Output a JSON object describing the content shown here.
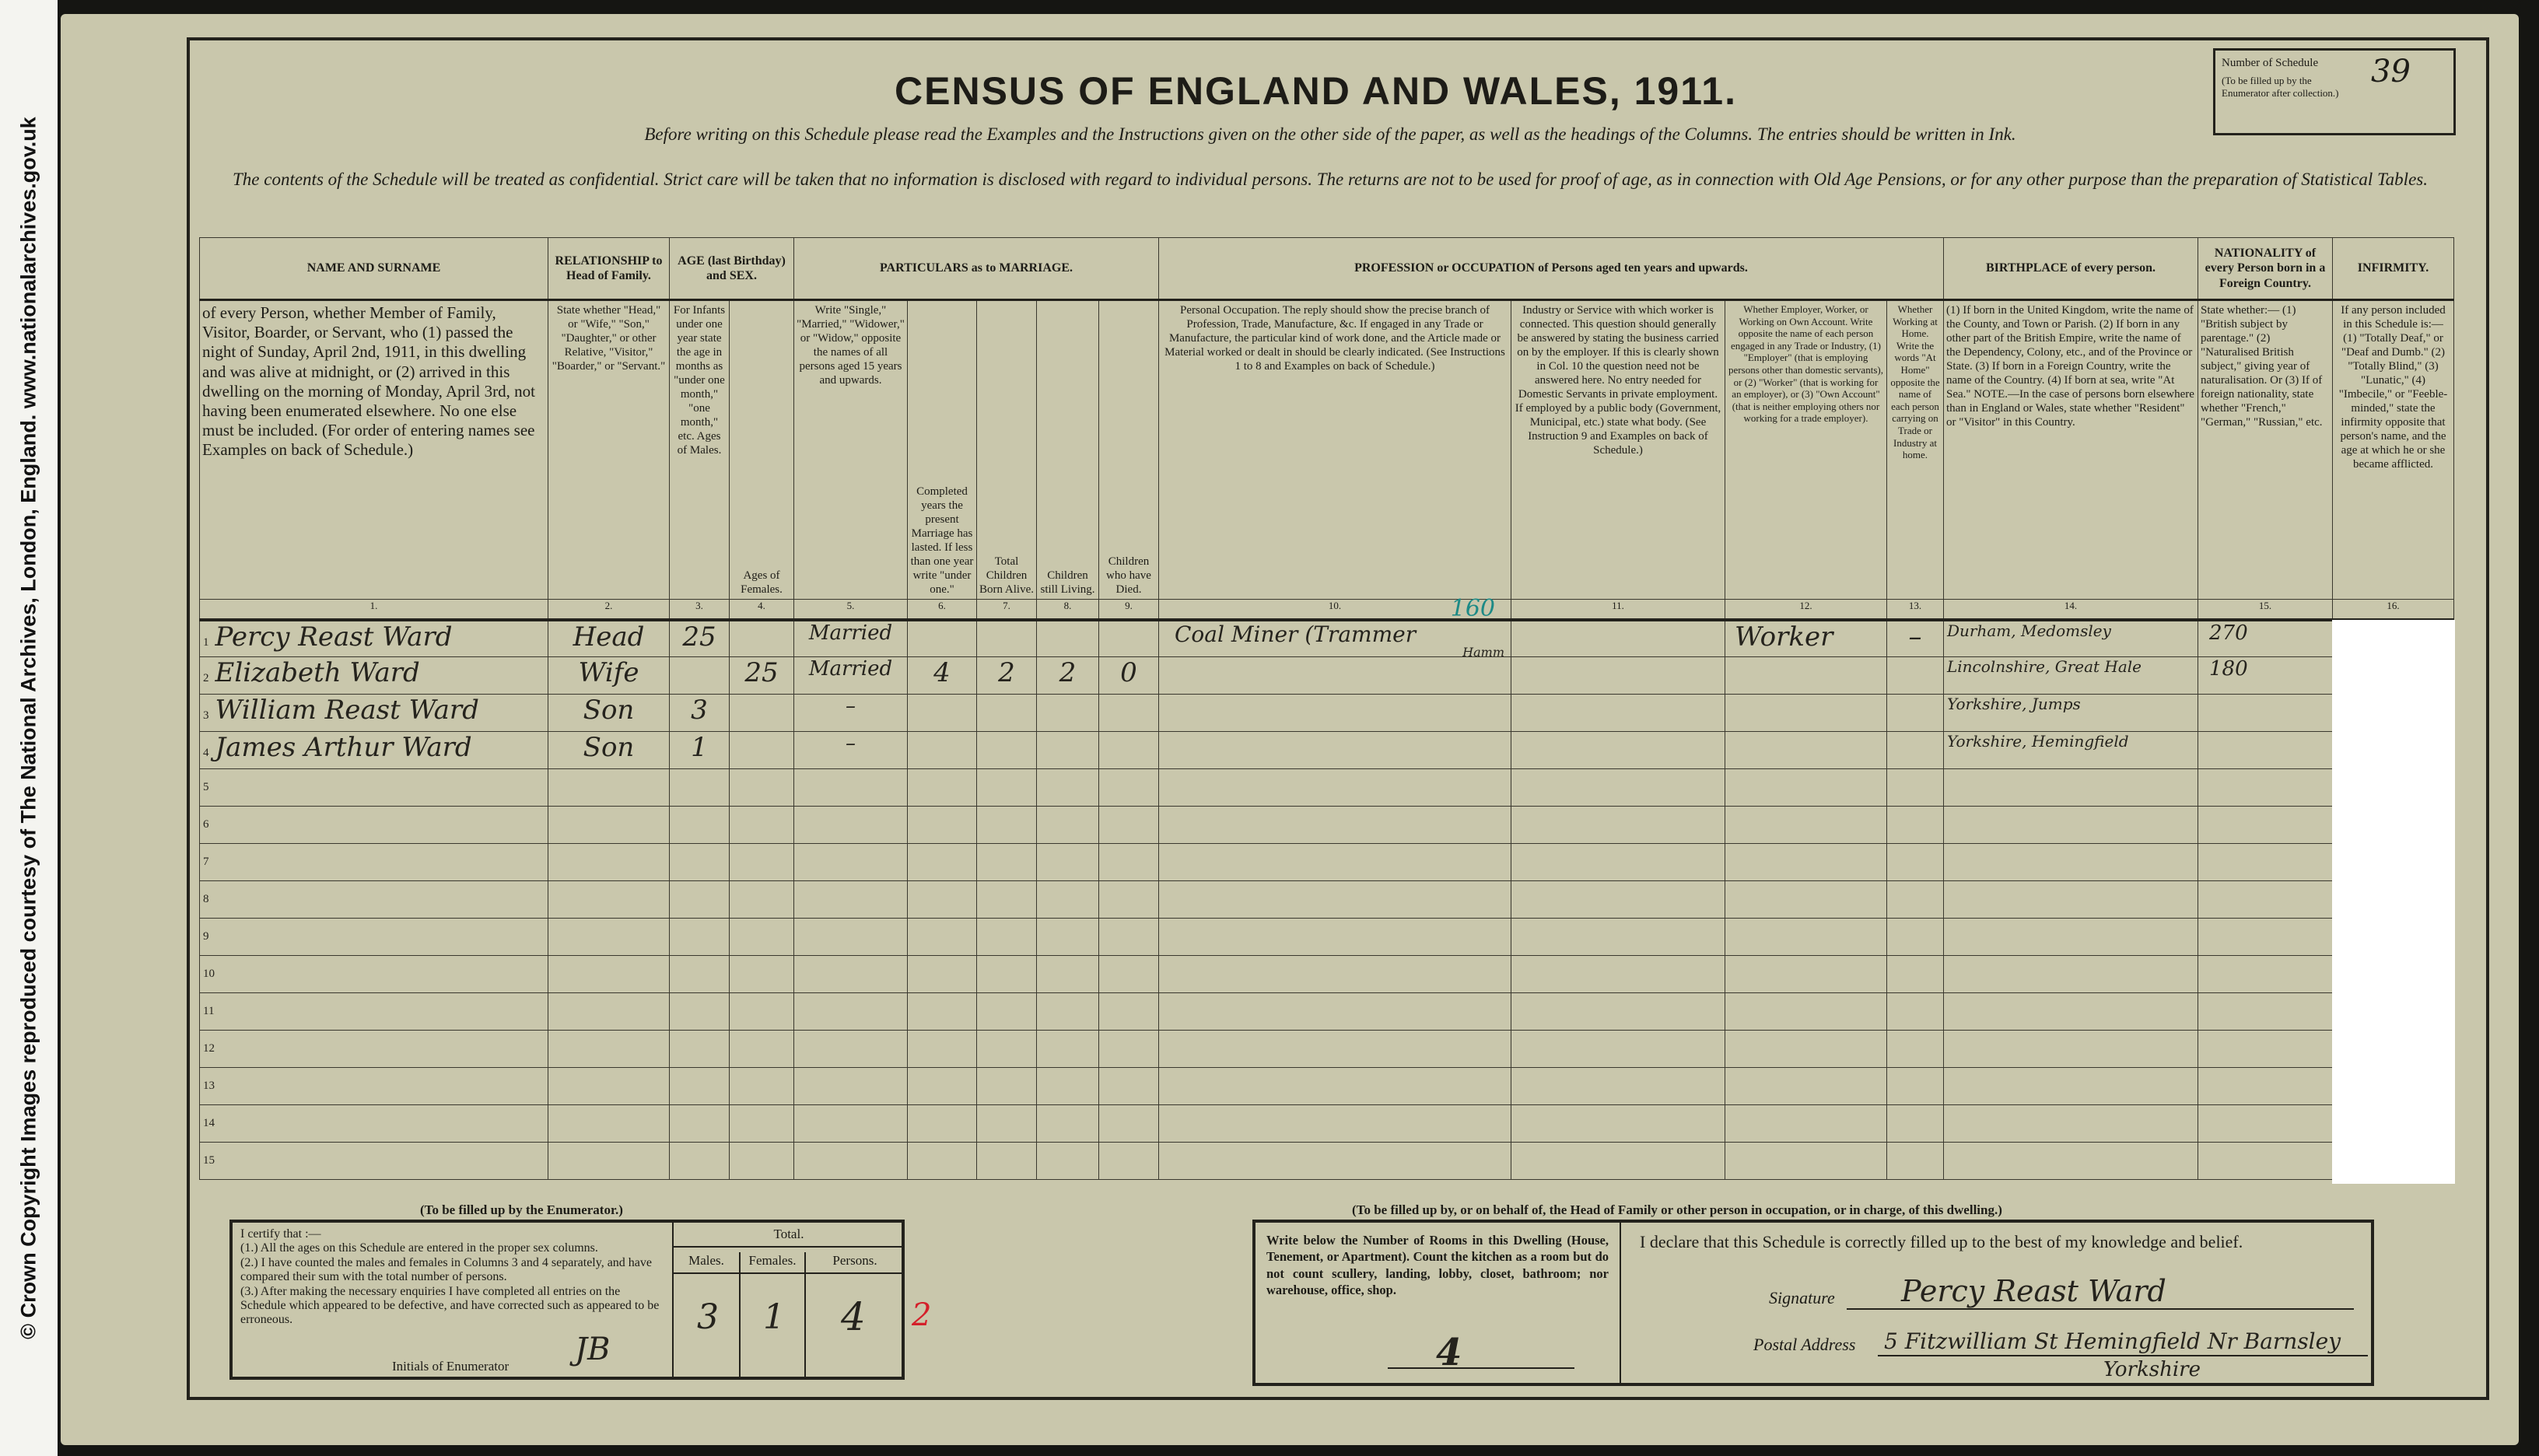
{
  "credit": "© Crown Copyright Images reproduced courtesy of The National Archives, London, England. www.nationalarchives.gov.uk",
  "title": "CENSUS OF ENGLAND AND WALES, 1911.",
  "instruction_1": "Before writing on this Schedule please read the Examples and the Instructions given on the other side of the paper, as well as the headings of the Columns. The entries should be written in Ink.",
  "instruction_2": "The contents of the Schedule will be treated as confidential. Strict care will be taken that no information is disclosed with regard to individual persons. The returns are not to be used for proof of age, as in connection with Old Age Pensions, or for any other purpose than the preparation of Statistical Tables.",
  "schedule": {
    "label": "Number of Schedule",
    "note": "(To be filled up by the Enumerator after collection.)",
    "number": "39"
  },
  "groups": [
    "NAME AND SURNAME",
    "RELATIONSHIP to Head of Family.",
    "AGE (last Birthday) and SEX.",
    "PARTICULARS as to MARRIAGE.",
    "PROFESSION or OCCUPATION of Persons aged ten years and upwards.",
    "BIRTHPLACE of every person.",
    "NATIONALITY of every Person born in a Foreign Country.",
    "INFIRMITY."
  ],
  "subheads": [
    "of every Person, whether Member of Family, Visitor, Boarder, or Servant, who (1) passed the night of Sunday, April 2nd, 1911, in this dwelling and was alive at midnight, or (2) arrived in this dwelling on the morning of Monday, April 3rd, not having been enumerated elsewhere. No one else must be included. (For order of entering names see Examples on back of Schedule.)",
    "State whether \"Head,\" or \"Wife,\" \"Son,\" \"Daughter,\" or other Relative, \"Visitor,\" \"Boarder,\" or \"Servant.\"",
    "For Infants under one year state the age in months as \"under one month,\" \"one month,\" etc. Ages of Males.",
    "Ages of Females.",
    "Write \"Single,\" \"Married,\" \"Widower,\" or \"Widow,\" opposite the names of all persons aged 15 years and upwards.",
    "Completed years the present Marriage has lasted. If less than one year write \"under one.\"",
    "Total Children Born Alive.",
    "Children still Living.",
    "Children who have Died.",
    "Personal Occupation. The reply should show the precise branch of Profession, Trade, Manufacture, &c. If engaged in any Trade or Manufacture, the particular kind of work done, and the Article made or Material worked or dealt in should be clearly indicated. (See Instructions 1 to 8 and Examples on back of Schedule.)",
    "Industry or Service with which worker is connected. This question should generally be answered by stating the business carried on by the employer. If this is clearly shown in Col. 10 the question need not be answered here. No entry needed for Domestic Servants in private employment. If employed by a public body (Government, Municipal, etc.) state what body. (See Instruction 9 and Examples on back of Schedule.)",
    "Whether Employer, Worker, or Working on Own Account. Write opposite the name of each person engaged in any Trade or Industry, (1) \"Employer\" (that is employing persons other than domestic servants), or (2) \"Worker\" (that is working for an employer), or (3) \"Own Account\" (that is neither employing others nor working for a trade employer).",
    "Whether Working at Home. Write the words \"At Home\" opposite the name of each person carrying on Trade or Industry at home.",
    "(1) If born in the United Kingdom, write the name of the County, and Town or Parish. (2) If born in any other part of the British Empire, write the name of the Dependency, Colony, etc., and of the Province or State. (3) If born in a Foreign Country, write the name of the Country. (4) If born at sea, write \"At Sea.\" NOTE.—In the case of persons born elsewhere than in England or Wales, state whether \"Resident\" or \"Visitor\" in this Country.",
    "State whether:— (1) \"British subject by parentage.\" (2) \"Naturalised British subject,\" giving year of naturalisation. Or (3) If of foreign nationality, state whether \"French,\" \"German,\" \"Russian,\" etc.",
    "If any person included in this Schedule is:— (1) \"Totally Deaf,\" or \"Deaf and Dumb.\" (2) \"Totally Blind,\" (3) \"Lunatic,\" (4) \"Imbecile,\" or \"Feeble-minded,\" state the infirmity opposite that person's name, and the age at which he or she became afflicted."
  ],
  "col_numbers": [
    "1.",
    "2.",
    "3.",
    "4.",
    "5.",
    "6.",
    "7.",
    "8.",
    "9.",
    "10.",
    "11.",
    "12.",
    "13.",
    "14.",
    "15.",
    "16."
  ],
  "persons": [
    {
      "n": "1",
      "name": "Percy Reast Ward",
      "rel": "Head",
      "male": "25",
      "female": "",
      "mar": "Married",
      "years": "",
      "born": "",
      "living": "",
      "died": "",
      "occ": "Coal Miner (Trammer",
      "occ2": "Hamm",
      "occ_code": "160",
      "ind": "",
      "emp": "Worker",
      "home": "–",
      "birth": "Durham, Medomsley",
      "nat": "270"
    },
    {
      "n": "2",
      "name": "Elizabeth Ward",
      "rel": "Wife",
      "male": "",
      "female": "25",
      "mar": "Married",
      "years": "4",
      "born": "2",
      "living": "2",
      "died": "0",
      "occ": "",
      "occ2": "",
      "occ_code": "",
      "ind": "",
      "emp": "",
      "home": "",
      "birth": "Lincolnshire, Great Hale",
      "nat": "180"
    },
    {
      "n": "3",
      "name": "William Reast Ward",
      "rel": "Son",
      "male": "3",
      "female": "",
      "mar": "–",
      "years": "",
      "born": "",
      "living": "",
      "died": "",
      "occ": "",
      "occ2": "",
      "occ_code": "",
      "ind": "",
      "emp": "",
      "home": "",
      "birth": "Yorkshire, Jumps",
      "nat": ""
    },
    {
      "n": "4",
      "name": "James Arthur Ward",
      "rel": "Son",
      "male": "1",
      "female": "",
      "mar": "–",
      "years": "",
      "born": "",
      "living": "",
      "died": "",
      "occ": "",
      "occ2": "",
      "occ_code": "",
      "ind": "",
      "emp": "",
      "home": "",
      "birth": "Yorkshire, Hemingfield",
      "nat": ""
    }
  ],
  "empty_rows": [
    "5",
    "6",
    "7",
    "8",
    "9",
    "10",
    "11",
    "12",
    "13",
    "14",
    "15"
  ],
  "enumerator": {
    "heading": "(To be filled up by the Enumerator.)",
    "certify": "I certify that :—",
    "items": [
      "(1.) All the ages on this Schedule are entered in the proper sex columns.",
      "(2.) I have counted the males and females in Columns 3 and 4 separately, and have compared their sum with the total number of persons.",
      "(3.) After making the necessary enquiries I have completed all entries on the Schedule which appeared to be defective, and have corrected such as appeared to be erroneous."
    ],
    "initials_label": "Initials of Enumerator",
    "initials": "JB",
    "total_label": "Total.",
    "males_label": "Males.",
    "females_label": "Females.",
    "persons_label": "Persons.",
    "males": "3",
    "females": "1",
    "persons": "4",
    "red_mark": "2"
  },
  "head": {
    "heading": "(To be filled up by, or on behalf of, the Head of Family or other person in occupation, or in charge, of this dwelling.)",
    "rooms_text": "Write below the Number of Rooms in this Dwelling (House, Tenement, or Apartment). Count the kitchen as a room but do not count scullery, landing, lobby, closet, bathroom; nor warehouse, office, shop.",
    "rooms": "4",
    "declare": "I declare that this Schedule is correctly filled up to the best of my knowledge and belief.",
    "signature_label": "Signature",
    "signature": "Percy Reast Ward",
    "address_label": "Postal Address",
    "address": "5 Fitzwilliam St Hemingfield Nr Barnsley",
    "address2": "Yorkshire"
  }
}
